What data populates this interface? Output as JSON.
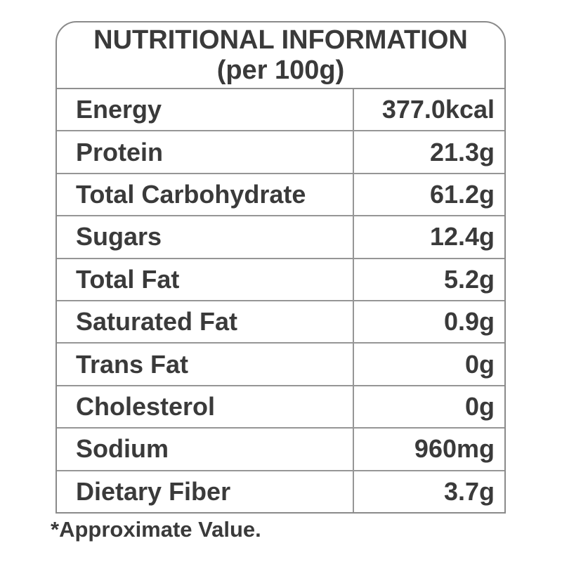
{
  "colors": {
    "background": "#ffffff",
    "text": "#3a3a3a",
    "outer_border": "#8a8a8a",
    "inner_lines": "#969696"
  },
  "table": {
    "title_line1": "NUTRITIONAL INFORMATION",
    "title_line2": "(per 100g)",
    "rows": [
      {
        "label": "Energy",
        "value": "377.0kcal"
      },
      {
        "label": "Protein",
        "value": "21.3g"
      },
      {
        "label": "Total Carbohydrate",
        "value": "61.2g"
      },
      {
        "label": "Sugars",
        "value": "12.4g"
      },
      {
        "label": "Total Fat",
        "value": "5.2g"
      },
      {
        "label": "Saturated Fat",
        "value": "0.9g"
      },
      {
        "label": "Trans Fat",
        "value": "0g"
      },
      {
        "label": "Cholesterol",
        "value": "0g"
      },
      {
        "label": "Sodium",
        "value": "960mg"
      },
      {
        "label": "Dietary Fiber",
        "value": "3.7g"
      }
    ],
    "footnote": "*Approximate Value."
  }
}
